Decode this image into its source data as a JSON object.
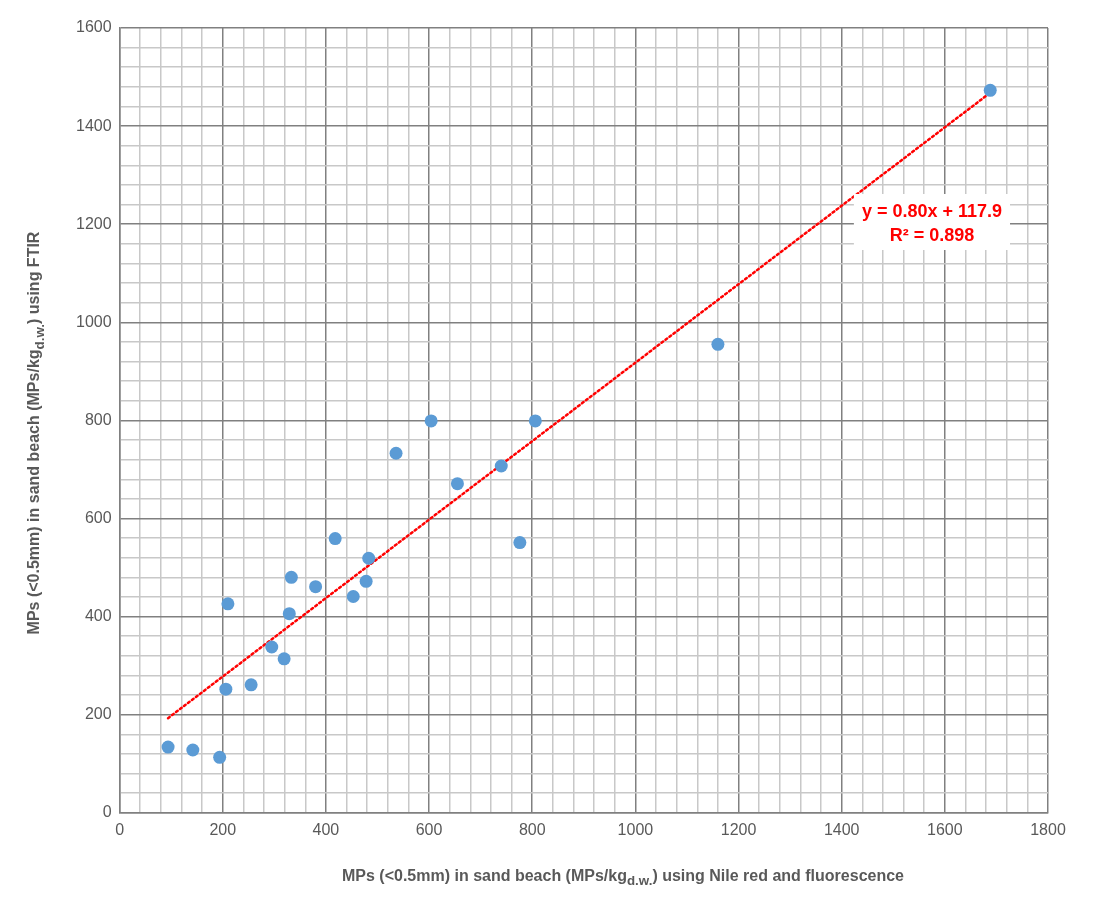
{
  "chart_data": {
    "type": "scatter",
    "xlabel": "MPs (<0.5mm) in sand beach (MPs/kg$_{d.w.}$) using Nile red and fluorescence",
    "ylabel": "MPs (<0.5mm) in sand beach (MPs/kg$_{d.w.}$) using FTIR",
    "series": [
      {
        "color": "#5b9bd5",
        "marker": "circle",
        "x": [
          94,
          142,
          194,
          206,
          210,
          255,
          295,
          319,
          329,
          333,
          380,
          418,
          453,
          478,
          483,
          536,
          604,
          655,
          740,
          776,
          806,
          1160,
          1688
        ],
        "values": [
          134,
          128,
          113,
          252,
          426,
          261,
          338,
          314,
          406,
          480,
          461,
          559,
          441,
          472,
          519,
          733,
          799,
          671,
          707,
          551,
          799,
          955,
          1473
        ]
      },
      {
        "type": "line",
        "color": "#ff0000",
        "line_style": "dotted",
        "marker": "none",
        "x": [
          94,
          1688
        ],
        "values": [
          193,
          1468
        ]
      }
    ],
    "annotations": [
      "y = 0.80x + 117.9",
      "R² = 0.898"
    ],
    "xlim": [
      0,
      1800
    ],
    "ylim": [
      0,
      1600
    ],
    "xticks": [
      0,
      {
        "value": 40,
        "label": null
      },
      {
        "value": 80,
        "label": null
      },
      {
        "value": 120,
        "label": null
      },
      {
        "value": 160,
        "label": null
      },
      200,
      {
        "value": 240,
        "label": null
      },
      {
        "value": 280,
        "label": null
      },
      {
        "value": 320,
        "label": null
      },
      {
        "value": 360,
        "label": null
      },
      400,
      {
        "value": 440,
        "label": null
      },
      {
        "value": 480,
        "label": null
      },
      {
        "value": 520,
        "label": null
      },
      {
        "value": 560,
        "label": null
      },
      600,
      {
        "value": 640,
        "label": null
      },
      {
        "value": 680,
        "label": null
      },
      {
        "value": 720,
        "label": null
      },
      {
        "value": 760,
        "label": null
      },
      800,
      {
        "value": 840,
        "label": null
      },
      {
        "value": 880,
        "label": null
      },
      {
        "value": 920,
        "label": null
      },
      {
        "value": 960,
        "label": null
      },
      1000,
      {
        "value": 1040,
        "label": null
      },
      {
        "value": 1080,
        "label": null
      },
      {
        "value": 1120,
        "label": null
      },
      {
        "value": 1160,
        "label": null
      },
      1200,
      {
        "value": 1240,
        "label": null
      },
      {
        "value": 1280,
        "label": null
      },
      {
        "value": 1320,
        "label": null
      },
      {
        "value": 1360,
        "label": null
      },
      1400,
      {
        "value": 1440,
        "label": null
      },
      {
        "value": 1480,
        "label": null
      },
      {
        "value": 1520,
        "label": null
      },
      {
        "value": 1560,
        "label": null
      },
      1600,
      {
        "value": 1640,
        "label": null
      },
      {
        "value": 1680,
        "label": null
      },
      {
        "value": 1720,
        "label": null
      },
      {
        "value": 1760,
        "label": null
      },
      1800
    ],
    "yticks": [
      0,
      {
        "value": 40,
        "label": null
      },
      {
        "value": 80,
        "label": null
      },
      {
        "value": 120,
        "label": null
      },
      {
        "value": 160,
        "label": null
      },
      200,
      {
        "value": 240,
        "label": null
      },
      {
        "value": 280,
        "label": null
      },
      {
        "value": 320,
        "label": null
      },
      {
        "value": 360,
        "label": null
      },
      400,
      {
        "value": 440,
        "label": null
      },
      {
        "value": 480,
        "label": null
      },
      {
        "value": 520,
        "label": null
      },
      {
        "value": 560,
        "label": null
      },
      600,
      {
        "value": 640,
        "label": null
      },
      {
        "value": 680,
        "label": null
      },
      {
        "value": 720,
        "label": null
      },
      {
        "value": 760,
        "label": null
      },
      800,
      {
        "value": 840,
        "label": null
      },
      {
        "value": 880,
        "label": null
      },
      {
        "value": 920,
        "label": null
      },
      {
        "value": 960,
        "label": null
      },
      1000,
      {
        "value": 1040,
        "label": null
      },
      {
        "value": 1080,
        "label": null
      },
      {
        "value": 1120,
        "label": null
      },
      {
        "value": 1160,
        "label": null
      },
      1200,
      {
        "value": 1240,
        "label": null
      },
      {
        "value": 1280,
        "label": null
      },
      {
        "value": 1320,
        "label": null
      },
      {
        "value": 1360,
        "label": null
      },
      1400,
      {
        "value": 1440,
        "label": null
      },
      {
        "value": 1480,
        "label": null
      },
      {
        "value": 1520,
        "label": null
      },
      {
        "value": 1560,
        "label": null
      },
      1600
    ],
    "grid": true,
    "legend": false
  }
}
